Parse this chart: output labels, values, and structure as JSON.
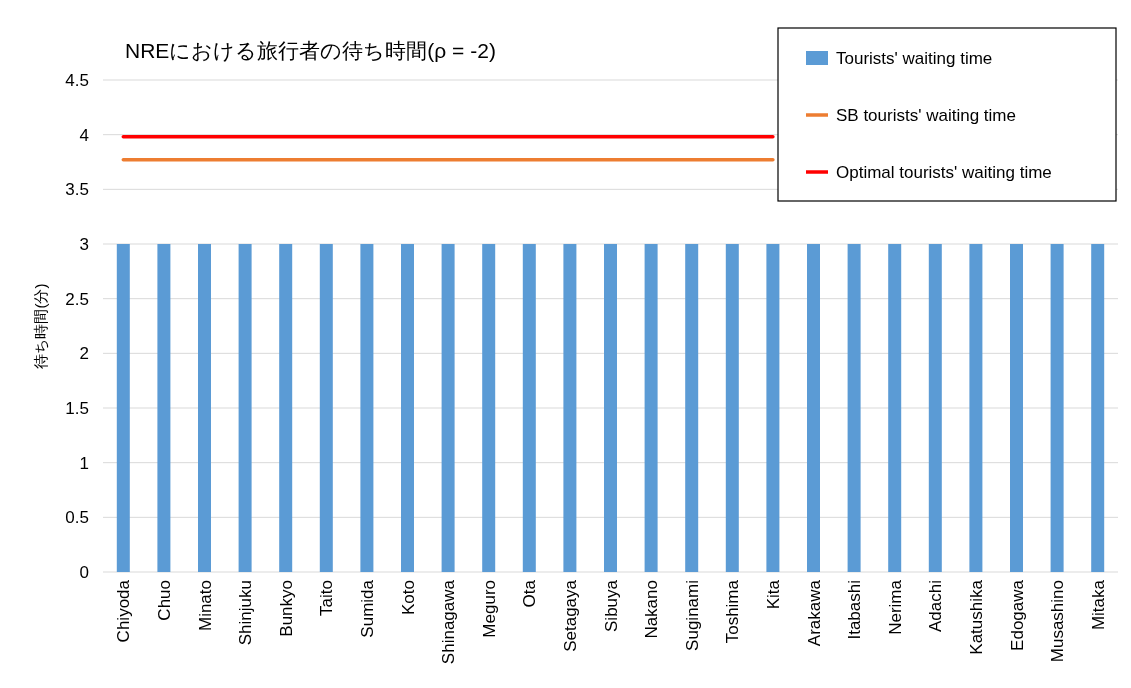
{
  "chart_data": {
    "type": "bar",
    "title": "NREにおける旅行者の待ち時間(ρ = -2)",
    "ylabel": "待ち時間(分)",
    "categories": [
      "Chiyoda",
      "Chuo",
      "Minato",
      "Shinjuku",
      "Bunkyo",
      "Taito",
      "Sumida",
      "Koto",
      "Shinagawa",
      "Meguro",
      "Ota",
      "Setagaya",
      "Sibuya",
      "Nakano",
      "Suginami",
      "Toshima",
      "Kita",
      "Arakawa",
      "Itabashi",
      "Nerima",
      "Adachi",
      "Katushika",
      "Edogawa",
      "Musashino",
      "Mitaka"
    ],
    "series": [
      {
        "name": "Tourists' waiting time",
        "color": "#5b9bd5",
        "values": [
          3,
          3,
          3,
          3,
          3,
          3,
          3,
          3,
          3,
          3,
          3,
          3,
          3,
          3,
          3,
          3,
          3,
          3,
          3,
          3,
          3,
          3,
          3,
          3,
          3
        ]
      },
      {
        "name": "SB tourists' waiting time",
        "type": "line",
        "color": "#ed7d31",
        "values": [
          3.77,
          3.77,
          3.77,
          3.77,
          3.77,
          3.77,
          3.77,
          3.77,
          3.77,
          3.77,
          3.77,
          3.77,
          3.77,
          3.77,
          3.77,
          3.77,
          3.77,
          null,
          null,
          null,
          null,
          null,
          null,
          null,
          null
        ]
      },
      {
        "name": "Optimal tourists' waiting time",
        "type": "line",
        "color": "#ff0000",
        "values": [
          3.98,
          3.98,
          3.98,
          3.98,
          3.98,
          3.98,
          3.98,
          3.98,
          3.98,
          3.98,
          3.98,
          3.98,
          3.98,
          3.98,
          3.98,
          3.98,
          3.98,
          null,
          null,
          null,
          null,
          null,
          null,
          null,
          null
        ]
      }
    ],
    "ylim": [
      0,
      4.5
    ],
    "yticks": [
      0,
      0.5,
      1,
      1.5,
      2,
      2.5,
      3,
      3.5,
      4,
      4.5
    ],
    "grid": "y",
    "legend": "top right"
  }
}
